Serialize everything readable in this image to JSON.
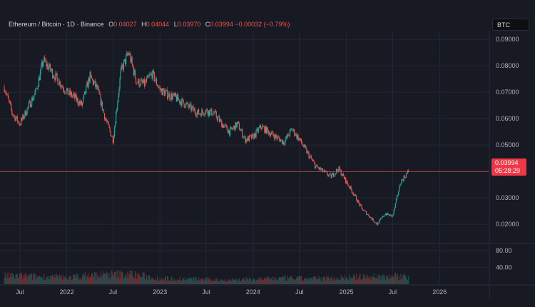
{
  "legend": {
    "symbol": "Ethereum / Bitcoin · 1D · Binance",
    "open_label": "O",
    "open": "0.04027",
    "high_label": "H",
    "high": "0.04044",
    "low_label": "L",
    "low": "0.03970",
    "close_label": "C",
    "close": "0.03994",
    "change": "−0.00032 (−0.79%)"
  },
  "currency_badge": "BTC",
  "last_price": {
    "value": "0.03994",
    "countdown": "05:28:29"
  },
  "colors": {
    "up": "#26a69a",
    "down": "#ef5350",
    "background": "#171a22",
    "grid": "#242833",
    "price_line": "#ef5350",
    "axis_text": "#b2b5be"
  },
  "chart_data": {
    "type": "candlestick",
    "title": "Ethereum / Bitcoin · 1D · Binance",
    "price_axis": {
      "ticks": [
        "0.09000",
        "0.08000",
        "0.07000",
        "0.06000",
        "0.05000",
        "0.03000",
        "0.02000"
      ],
      "tick_values": [
        0.09,
        0.08,
        0.07,
        0.06,
        0.05,
        0.03,
        0.02
      ],
      "ylim": [
        0.013,
        0.093
      ]
    },
    "volume_axis": {
      "ticks": [
        "80.00",
        "40.00"
      ],
      "tick_values": [
        80,
        40
      ],
      "ylim": [
        0,
        95
      ]
    },
    "time_axis": {
      "labels": [
        "Jul",
        "2022",
        "Jul",
        "2023",
        "Jul",
        "2024",
        "Jul",
        "2025",
        "Jul",
        "2026"
      ],
      "dates": [
        "2021-07-01",
        "2022-01-01",
        "2022-07-01",
        "2023-01-01",
        "2023-07-01",
        "2024-01-01",
        "2024-07-01",
        "2025-01-01",
        "2025-07-01",
        "2026-01-01"
      ],
      "xlim": [
        "2021-05-01",
        "2026-07-15"
      ]
    },
    "grid": true,
    "price_series": {
      "dates": [
        "2021-05-01",
        "2021-06-01",
        "2021-07-01",
        "2021-08-01",
        "2021-09-01",
        "2021-10-01",
        "2021-11-01",
        "2021-12-01",
        "2022-01-01",
        "2022-02-01",
        "2022-03-01",
        "2022-04-01",
        "2022-05-01",
        "2022-06-01",
        "2022-07-01",
        "2022-08-01",
        "2022-09-01",
        "2022-10-01",
        "2022-11-01",
        "2022-12-01",
        "2023-01-01",
        "2023-02-01",
        "2023-03-01",
        "2023-04-01",
        "2023-05-01",
        "2023-06-01",
        "2023-07-01",
        "2023-08-01",
        "2023-09-01",
        "2023-10-01",
        "2023-11-01",
        "2023-12-01",
        "2024-01-01",
        "2024-02-01",
        "2024-03-01",
        "2024-04-01",
        "2024-05-01",
        "2024-06-01",
        "2024-07-01",
        "2024-08-01",
        "2024-09-01",
        "2024-10-01",
        "2024-11-01",
        "2024-12-01",
        "2025-01-01",
        "2025-02-01",
        "2025-03-01",
        "2025-04-01",
        "2025-05-01",
        "2025-06-01",
        "2025-07-01",
        "2025-08-01",
        "2025-09-01"
      ],
      "close": [
        0.072,
        0.062,
        0.058,
        0.064,
        0.07,
        0.082,
        0.078,
        0.074,
        0.07,
        0.068,
        0.065,
        0.076,
        0.071,
        0.06,
        0.052,
        0.078,
        0.085,
        0.074,
        0.073,
        0.077,
        0.071,
        0.069,
        0.068,
        0.066,
        0.064,
        0.062,
        0.063,
        0.062,
        0.058,
        0.055,
        0.058,
        0.052,
        0.053,
        0.057,
        0.055,
        0.053,
        0.051,
        0.056,
        0.052,
        0.047,
        0.042,
        0.04,
        0.038,
        0.041,
        0.036,
        0.031,
        0.026,
        0.023,
        0.02,
        0.024,
        0.023,
        0.036,
        0.04
      ]
    },
    "volume_series": {
      "dates": [
        "2021-05-01",
        "2021-09-01",
        "2022-01-01",
        "2022-05-01",
        "2022-09-01",
        "2023-01-01",
        "2023-05-01",
        "2023-09-01",
        "2024-01-01",
        "2024-05-01",
        "2024-09-01",
        "2025-01-01",
        "2025-05-01",
        "2025-09-01"
      ],
      "values": [
        20,
        18,
        16,
        22,
        24,
        14,
        12,
        10,
        12,
        14,
        13,
        16,
        18,
        20
      ]
    },
    "last_price_line": 0.03994
  }
}
